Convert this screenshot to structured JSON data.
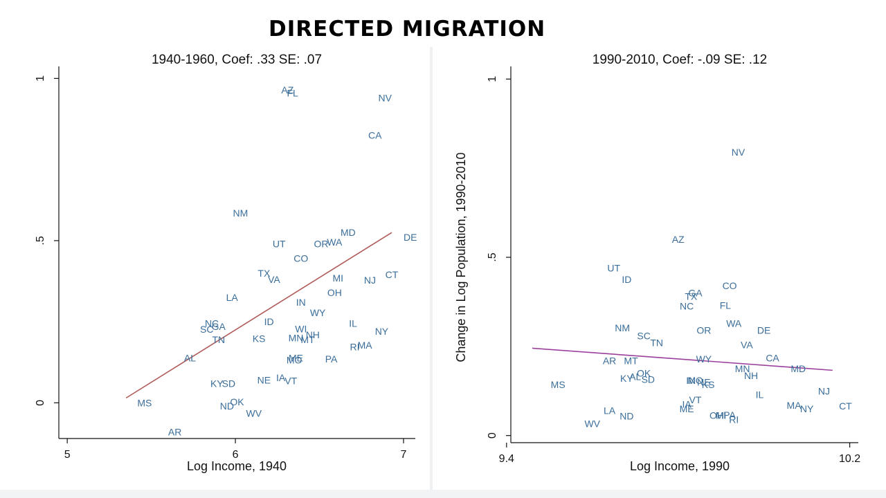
{
  "slide_title": "DIRECTED MIGRATION",
  "colors": {
    "points": "#3b6e9a",
    "fit_left": "#b05a58",
    "fit_right": "#9a3e9c",
    "axis": "#111111"
  },
  "chart_data": [
    {
      "type": "scatter",
      "title": "1940-1960, Coef: .33 SE: .07",
      "xlabel": "Log Income, 1940",
      "ylabel": "",
      "xlim": [
        4.95,
        7.07
      ],
      "ylim": [
        -0.11,
        1.02
      ],
      "xticks": [
        5,
        6,
        7
      ],
      "xtick_labels": [
        "5",
        "6",
        "7"
      ],
      "yticks": [
        0,
        0.5,
        1
      ],
      "ytick_labels": [
        "0",
        ".5",
        "1"
      ],
      "fit_line": {
        "x": [
          5.35,
          6.93
        ],
        "y": [
          0.015,
          0.525
        ]
      },
      "points": [
        {
          "label": "AZ",
          "x": 6.31,
          "y": 0.965
        },
        {
          "label": "FL",
          "x": 6.34,
          "y": 0.955
        },
        {
          "label": "NV",
          "x": 6.89,
          "y": 0.94
        },
        {
          "label": "CA",
          "x": 6.83,
          "y": 0.825
        },
        {
          "label": "NM",
          "x": 6.03,
          "y": 0.585
        },
        {
          "label": "MD",
          "x": 6.67,
          "y": 0.525
        },
        {
          "label": "DE",
          "x": 7.04,
          "y": 0.51
        },
        {
          "label": "UT",
          "x": 6.26,
          "y": 0.49
        },
        {
          "label": "OR",
          "x": 6.51,
          "y": 0.49
        },
        {
          "label": "WA",
          "x": 6.59,
          "y": 0.495
        },
        {
          "label": "CO",
          "x": 6.39,
          "y": 0.445
        },
        {
          "label": "TX",
          "x": 6.17,
          "y": 0.4
        },
        {
          "label": "VA",
          "x": 6.23,
          "y": 0.38
        },
        {
          "label": "MI",
          "x": 6.61,
          "y": 0.385
        },
        {
          "label": "CT",
          "x": 6.93,
          "y": 0.395
        },
        {
          "label": "NJ",
          "x": 6.8,
          "y": 0.378
        },
        {
          "label": "OH",
          "x": 6.59,
          "y": 0.34
        },
        {
          "label": "LA",
          "x": 5.98,
          "y": 0.325
        },
        {
          "label": "IN",
          "x": 6.39,
          "y": 0.31
        },
        {
          "label": "WY",
          "x": 6.49,
          "y": 0.278
        },
        {
          "label": "NC",
          "x": 5.86,
          "y": 0.245
        },
        {
          "label": "SC",
          "x": 5.83,
          "y": 0.227
        },
        {
          "label": "GA",
          "x": 5.9,
          "y": 0.235
        },
        {
          "label": "ID",
          "x": 6.2,
          "y": 0.25
        },
        {
          "label": "IL",
          "x": 6.7,
          "y": 0.245
        },
        {
          "label": "WI",
          "x": 6.39,
          "y": 0.228
        },
        {
          "label": "NY",
          "x": 6.87,
          "y": 0.22
        },
        {
          "label": "NH",
          "x": 6.46,
          "y": 0.21
        },
        {
          "label": "MN",
          "x": 6.36,
          "y": 0.2
        },
        {
          "label": "MT",
          "x": 6.43,
          "y": 0.195
        },
        {
          "label": "TN",
          "x": 5.9,
          "y": 0.195
        },
        {
          "label": "KS",
          "x": 6.14,
          "y": 0.198
        },
        {
          "label": "MA",
          "x": 6.77,
          "y": 0.178
        },
        {
          "label": "RI",
          "x": 6.71,
          "y": 0.172
        },
        {
          "label": "AL",
          "x": 5.73,
          "y": 0.138
        },
        {
          "label": "ME",
          "x": 6.36,
          "y": 0.138
        },
        {
          "label": "MO",
          "x": 6.35,
          "y": 0.132
        },
        {
          "label": "PA",
          "x": 6.57,
          "y": 0.135
        },
        {
          "label": "NE",
          "x": 6.17,
          "y": 0.07
        },
        {
          "label": "IA",
          "x": 6.27,
          "y": 0.078
        },
        {
          "label": "VT",
          "x": 6.33,
          "y": 0.068
        },
        {
          "label": "KY",
          "x": 5.89,
          "y": 0.06
        },
        {
          "label": "SD",
          "x": 5.96,
          "y": 0.06
        },
        {
          "label": "MS",
          "x": 5.46,
          "y": 0.0
        },
        {
          "label": "OK",
          "x": 6.01,
          "y": 0.003
        },
        {
          "label": "ND",
          "x": 5.95,
          "y": -0.01
        },
        {
          "label": "WV",
          "x": 6.11,
          "y": -0.032
        },
        {
          "label": "AR",
          "x": 5.64,
          "y": -0.09
        }
      ]
    },
    {
      "type": "scatter",
      "title": "1990-2010, Coef: -.09  SE: .12",
      "xlabel": "Log Income, 1990",
      "ylabel": "Change in Log Population, 1990-2010",
      "xlim": [
        9.41,
        10.22
      ],
      "ylim": [
        -0.02,
        1.02
      ],
      "xticks": [
        9.4,
        10.2
      ],
      "xtick_labels": [
        "9.4",
        "10.2"
      ],
      "yticks": [
        0,
        0.5,
        1
      ],
      "ytick_labels": [
        "0",
        ".5",
        "1"
      ],
      "fit_line": {
        "x": [
          9.46,
          10.16
        ],
        "y": [
          0.245,
          0.183
        ]
      },
      "points": [
        {
          "label": "NV",
          "x": 9.94,
          "y": 0.795
        },
        {
          "label": "AZ",
          "x": 9.8,
          "y": 0.55
        },
        {
          "label": "UT",
          "x": 9.65,
          "y": 0.47
        },
        {
          "label": "ID",
          "x": 9.68,
          "y": 0.438
        },
        {
          "label": "CO",
          "x": 9.92,
          "y": 0.42
        },
        {
          "label": "GA",
          "x": 9.84,
          "y": 0.4
        },
        {
          "label": "TX",
          "x": 9.83,
          "y": 0.39
        },
        {
          "label": "FL",
          "x": 9.91,
          "y": 0.365
        },
        {
          "label": "NC",
          "x": 9.82,
          "y": 0.363
        },
        {
          "label": "NM",
          "x": 9.67,
          "y": 0.302
        },
        {
          "label": "WA",
          "x": 9.93,
          "y": 0.315
        },
        {
          "label": "DE",
          "x": 10.0,
          "y": 0.295
        },
        {
          "label": "OR",
          "x": 9.86,
          "y": 0.295
        },
        {
          "label": "SC",
          "x": 9.72,
          "y": 0.28
        },
        {
          "label": "TN",
          "x": 9.75,
          "y": 0.26
        },
        {
          "label": "VA",
          "x": 9.96,
          "y": 0.255
        },
        {
          "label": "WY",
          "x": 9.86,
          "y": 0.215
        },
        {
          "label": "CA",
          "x": 10.02,
          "y": 0.218
        },
        {
          "label": "AR",
          "x": 9.64,
          "y": 0.21
        },
        {
          "label": "MT",
          "x": 9.69,
          "y": 0.21
        },
        {
          "label": "MN",
          "x": 9.95,
          "y": 0.188
        },
        {
          "label": "MD",
          "x": 10.08,
          "y": 0.188
        },
        {
          "label": "NH",
          "x": 9.97,
          "y": 0.168
        },
        {
          "label": "OK",
          "x": 9.72,
          "y": 0.175
        },
        {
          "label": "AL",
          "x": 9.7,
          "y": 0.165
        },
        {
          "label": "KY",
          "x": 9.68,
          "y": 0.16
        },
        {
          "label": "SD",
          "x": 9.73,
          "y": 0.158
        },
        {
          "label": "IN",
          "x": 9.83,
          "y": 0.155
        },
        {
          "label": "MO",
          "x": 9.84,
          "y": 0.155
        },
        {
          "label": "NE",
          "x": 9.86,
          "y": 0.15
        },
        {
          "label": "KS",
          "x": 9.87,
          "y": 0.143
        },
        {
          "label": "MS",
          "x": 9.52,
          "y": 0.143
        },
        {
          "label": "NJ",
          "x": 10.14,
          "y": 0.125
        },
        {
          "label": "IL",
          "x": 9.99,
          "y": 0.115
        },
        {
          "label": "VT",
          "x": 9.84,
          "y": 0.1
        },
        {
          "label": "IA",
          "x": 9.82,
          "y": 0.088
        },
        {
          "label": "MA",
          "x": 10.07,
          "y": 0.085
        },
        {
          "label": "CT",
          "x": 10.19,
          "y": 0.083
        },
        {
          "label": "NY",
          "x": 10.1,
          "y": 0.075
        },
        {
          "label": "ME",
          "x": 9.82,
          "y": 0.075
        },
        {
          "label": "LA",
          "x": 9.64,
          "y": 0.07
        },
        {
          "label": "PA",
          "x": 9.92,
          "y": 0.058
        },
        {
          "label": "OH",
          "x": 9.89,
          "y": 0.057
        },
        {
          "label": "MI",
          "x": 9.9,
          "y": 0.057
        },
        {
          "label": "ND",
          "x": 9.68,
          "y": 0.055
        },
        {
          "label": "RI",
          "x": 9.93,
          "y": 0.045
        },
        {
          "label": "WV",
          "x": 9.6,
          "y": 0.033
        }
      ]
    }
  ]
}
